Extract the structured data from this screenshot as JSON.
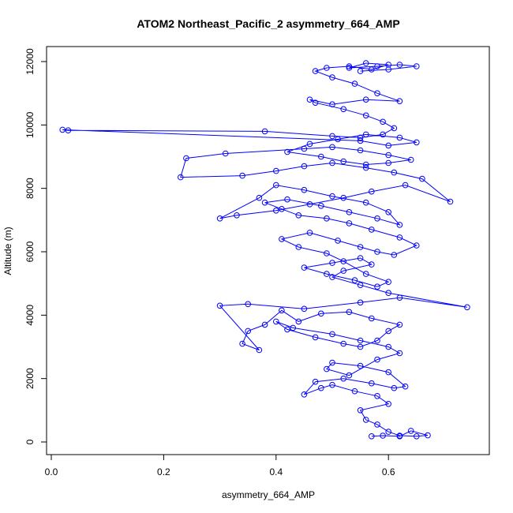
{
  "chart_data": {
    "type": "line",
    "title": "ATOM2 Northeast_Pacific_2 asymmetry_664_AMP",
    "xlabel": "asymmetry_664_AMP",
    "ylabel": "Altitude (m)",
    "xlim": [
      0.0,
      0.75
    ],
    "ylim": [
      0,
      12000
    ],
    "xticks": [
      0.0,
      0.2,
      0.4,
      0.6
    ],
    "xtick_labels": [
      "0.0",
      "0.2",
      "0.4",
      "0.6"
    ],
    "yticks": [
      0,
      2000,
      4000,
      6000,
      8000,
      10000,
      12000
    ],
    "ytick_labels": [
      "0",
      "2000",
      "4000",
      "6000",
      "8000",
      "10000",
      "12000"
    ],
    "marker": "open-circle",
    "line_color": "#0000ff",
    "grid": false,
    "series": [
      {
        "x": [
          0.57,
          0.59,
          0.62,
          0.64,
          0.67,
          0.65,
          0.62,
          0.6,
          0.58,
          0.56,
          0.55,
          0.6,
          0.58,
          0.54,
          0.5,
          0.48,
          0.45,
          0.47,
          0.52,
          0.57,
          0.61,
          0.63,
          0.6,
          0.55,
          0.5,
          0.49,
          0.53,
          0.58,
          0.62,
          0.6,
          0.55,
          0.5,
          0.43,
          0.4,
          0.42,
          0.47,
          0.52,
          0.55,
          0.58,
          0.6,
          0.62,
          0.57,
          0.53,
          0.48,
          0.44,
          0.41,
          0.38,
          0.35,
          0.34,
          0.37,
          0.3,
          0.35,
          0.45,
          0.55,
          0.62,
          0.74,
          0.6,
          0.55,
          0.5,
          0.52,
          0.57,
          0.55,
          0.5,
          0.45,
          0.49,
          0.54,
          0.58,
          0.6,
          0.56,
          0.52,
          0.49,
          0.44,
          0.41,
          0.46,
          0.51,
          0.55,
          0.58,
          0.61,
          0.65,
          0.62,
          0.57,
          0.53,
          0.49,
          0.44,
          0.41,
          0.38,
          0.42,
          0.48,
          0.53,
          0.58,
          0.62,
          0.6,
          0.56,
          0.5,
          0.45,
          0.4,
          0.37,
          0.3,
          0.33,
          0.4,
          0.46,
          0.52,
          0.57,
          0.63,
          0.71,
          0.66,
          0.61,
          0.56,
          0.5,
          0.45,
          0.4,
          0.34,
          0.23,
          0.24,
          0.31,
          0.45,
          0.5,
          0.55,
          0.6,
          0.64,
          0.6,
          0.56,
          0.52,
          0.48,
          0.42,
          0.46,
          0.51,
          0.56,
          0.62,
          0.65,
          0.6,
          0.55,
          0.02,
          0.03,
          0.38,
          0.5,
          0.55,
          0.59,
          0.61,
          0.59,
          0.56,
          0.52,
          0.47,
          0.46,
          0.5,
          0.56,
          0.62,
          0.58,
          0.54,
          0.5,
          0.47,
          0.49,
          0.53,
          0.57,
          0.6,
          0.56,
          0.53,
          0.58,
          0.62,
          0.65,
          0.6,
          0.55
        ],
        "y": [
          180,
          200,
          180,
          350,
          210,
          180,
          200,
          320,
          550,
          700,
          1000,
          1200,
          1450,
          1600,
          1800,
          1700,
          1500,
          1900,
          2000,
          1850,
          1700,
          1750,
          2200,
          2400,
          2500,
          2300,
          2100,
          2600,
          2800,
          3000,
          3200,
          3400,
          3600,
          3800,
          3550,
          3300,
          3100,
          3000,
          3200,
          3500,
          3700,
          3900,
          4100,
          4050,
          3800,
          4150,
          3700,
          3500,
          3100,
          2900,
          4300,
          4350,
          4200,
          4400,
          4550,
          4250,
          4700,
          4950,
          5200,
          5400,
          5600,
          5800,
          5650,
          5500,
          5300,
          5100,
          4900,
          5050,
          5300,
          5700,
          5950,
          6150,
          6400,
          6600,
          6350,
          6150,
          6000,
          5900,
          6200,
          6450,
          6700,
          6900,
          7050,
          7150,
          7350,
          7550,
          7650,
          7450,
          7250,
          7050,
          6850,
          7250,
          7550,
          7750,
          7950,
          8100,
          7700,
          7050,
          7150,
          7300,
          7500,
          7700,
          7900,
          8100,
          7580,
          8300,
          8500,
          8650,
          8800,
          8700,
          8550,
          8400,
          8350,
          8950,
          9100,
          9250,
          9300,
          9200,
          9050,
          8900,
          8800,
          8750,
          8850,
          9000,
          9150,
          9400,
          9550,
          9700,
          9600,
          9450,
          9350,
          9500,
          9850,
          9830,
          9800,
          9650,
          9600,
          9700,
          9900,
          10100,
          10300,
          10500,
          10700,
          10800,
          10650,
          10800,
          10750,
          11000,
          11300,
          11500,
          11700,
          11800,
          11850,
          11750,
          11900,
          11950,
          11800,
          11850,
          11900,
          11850,
          11750,
          11700
        ]
      }
    ]
  }
}
